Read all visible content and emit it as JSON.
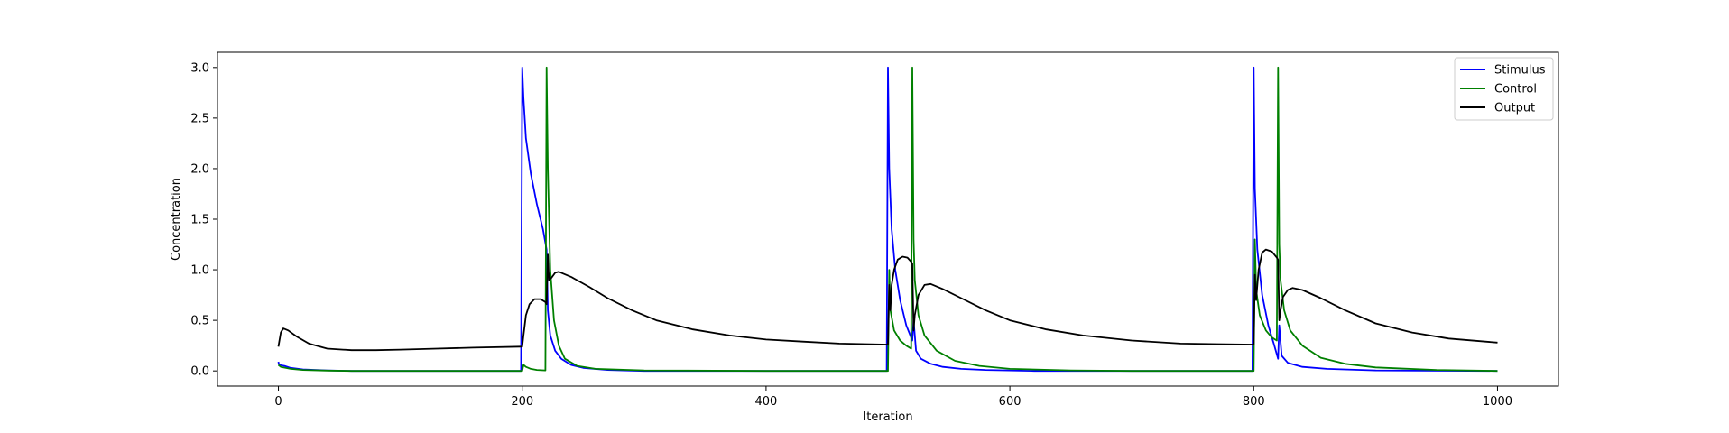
{
  "chart_data": {
    "type": "line",
    "xlabel": "Iteration",
    "ylabel": "Concentration",
    "xlim": [
      -50,
      1050
    ],
    "ylim": [
      -0.15,
      3.15
    ],
    "x_ticks": [
      0,
      200,
      400,
      600,
      800,
      1000
    ],
    "y_ticks": [
      0.0,
      0.5,
      1.0,
      1.5,
      2.0,
      2.5,
      3.0
    ],
    "x_tick_labels": [
      "0",
      "200",
      "400",
      "600",
      "800",
      "1000"
    ],
    "y_tick_labels": [
      "0.0",
      "0.5",
      "1.0",
      "1.5",
      "2.0",
      "2.5",
      "3.0"
    ],
    "grid": false,
    "legend_position": "top-right",
    "series": [
      {
        "name": "Stimulus",
        "color": "#0000ff",
        "points": [
          [
            0,
            0.09
          ],
          [
            0.5,
            0.06
          ],
          [
            5,
            0.05
          ],
          [
            10,
            0.03
          ],
          [
            20,
            0.015
          ],
          [
            40,
            0.005
          ],
          [
            60,
            0.0
          ],
          [
            199,
            0.0
          ],
          [
            200,
            3.0
          ],
          [
            201,
            2.7
          ],
          [
            203,
            2.3
          ],
          [
            207,
            1.95
          ],
          [
            212,
            1.65
          ],
          [
            217,
            1.4
          ],
          [
            220,
            1.2
          ],
          [
            221,
            0.6
          ],
          [
            223,
            0.35
          ],
          [
            227,
            0.2
          ],
          [
            232,
            0.12
          ],
          [
            240,
            0.06
          ],
          [
            250,
            0.03
          ],
          [
            270,
            0.01
          ],
          [
            300,
            0.0
          ],
          [
            499,
            0.0
          ],
          [
            500,
            3.0
          ],
          [
            501,
            2.0
          ],
          [
            503,
            1.4
          ],
          [
            506,
            1.0
          ],
          [
            510,
            0.7
          ],
          [
            515,
            0.45
          ],
          [
            520,
            0.3
          ],
          [
            521,
            0.5
          ],
          [
            523,
            0.2
          ],
          [
            527,
            0.12
          ],
          [
            535,
            0.07
          ],
          [
            545,
            0.04
          ],
          [
            560,
            0.02
          ],
          [
            580,
            0.01
          ],
          [
            620,
            0.0
          ],
          [
            799,
            0.0
          ],
          [
            800,
            3.0
          ],
          [
            801,
            1.8
          ],
          [
            803,
            1.2
          ],
          [
            807,
            0.75
          ],
          [
            812,
            0.45
          ],
          [
            817,
            0.25
          ],
          [
            820,
            0.12
          ],
          [
            821,
            0.45
          ],
          [
            823,
            0.15
          ],
          [
            828,
            0.08
          ],
          [
            840,
            0.04
          ],
          [
            860,
            0.02
          ],
          [
            900,
            0.005
          ],
          [
            1000,
            0.0
          ]
        ]
      },
      {
        "name": "Control",
        "color": "#008000",
        "points": [
          [
            0,
            0.06
          ],
          [
            2,
            0.04
          ],
          [
            10,
            0.02
          ],
          [
            20,
            0.01
          ],
          [
            40,
            0.003
          ],
          [
            60,
            0.0
          ],
          [
            200,
            0.0
          ],
          [
            201,
            0.06
          ],
          [
            203,
            0.04
          ],
          [
            207,
            0.02
          ],
          [
            212,
            0.01
          ],
          [
            219,
            0.005
          ],
          [
            220,
            3.0
          ],
          [
            221,
            2.0
          ],
          [
            223,
            1.0
          ],
          [
            226,
            0.5
          ],
          [
            230,
            0.25
          ],
          [
            235,
            0.12
          ],
          [
            245,
            0.05
          ],
          [
            260,
            0.02
          ],
          [
            300,
            0.005
          ],
          [
            400,
            0.0
          ],
          [
            500,
            0.0
          ],
          [
            501,
            1.0
          ],
          [
            502,
            0.6
          ],
          [
            505,
            0.4
          ],
          [
            510,
            0.3
          ],
          [
            515,
            0.25
          ],
          [
            519,
            0.22
          ],
          [
            520,
            3.0
          ],
          [
            521,
            1.3
          ],
          [
            522,
            0.9
          ],
          [
            525,
            0.55
          ],
          [
            530,
            0.35
          ],
          [
            540,
            0.2
          ],
          [
            555,
            0.1
          ],
          [
            575,
            0.05
          ],
          [
            600,
            0.02
          ],
          [
            650,
            0.005
          ],
          [
            700,
            0.0
          ],
          [
            800,
            0.0
          ],
          [
            801,
            1.3
          ],
          [
            802,
            0.8
          ],
          [
            805,
            0.55
          ],
          [
            810,
            0.4
          ],
          [
            815,
            0.33
          ],
          [
            819,
            0.3
          ],
          [
            820,
            3.0
          ],
          [
            821,
            1.25
          ],
          [
            822,
            0.9
          ],
          [
            825,
            0.6
          ],
          [
            830,
            0.4
          ],
          [
            840,
            0.25
          ],
          [
            855,
            0.13
          ],
          [
            875,
            0.07
          ],
          [
            900,
            0.035
          ],
          [
            950,
            0.01
          ],
          [
            1000,
            0.0
          ]
        ]
      },
      {
        "name": "Output",
        "color": "#000000",
        "points": [
          [
            0,
            0.24
          ],
          [
            2,
            0.38
          ],
          [
            4,
            0.42
          ],
          [
            8,
            0.4
          ],
          [
            15,
            0.34
          ],
          [
            25,
            0.27
          ],
          [
            40,
            0.22
          ],
          [
            60,
            0.205
          ],
          [
            80,
            0.205
          ],
          [
            100,
            0.21
          ],
          [
            130,
            0.22
          ],
          [
            160,
            0.23
          ],
          [
            199,
            0.24
          ],
          [
            200,
            0.24
          ],
          [
            201,
            0.35
          ],
          [
            203,
            0.55
          ],
          [
            206,
            0.66
          ],
          [
            210,
            0.71
          ],
          [
            215,
            0.71
          ],
          [
            219,
            0.68
          ],
          [
            220,
            0.66
          ],
          [
            221,
            1.15
          ],
          [
            222,
            0.9
          ],
          [
            224,
            0.92
          ],
          [
            227,
            0.97
          ],
          [
            230,
            0.98
          ],
          [
            240,
            0.93
          ],
          [
            255,
            0.83
          ],
          [
            270,
            0.72
          ],
          [
            290,
            0.6
          ],
          [
            310,
            0.5
          ],
          [
            340,
            0.41
          ],
          [
            370,
            0.35
          ],
          [
            400,
            0.31
          ],
          [
            430,
            0.29
          ],
          [
            460,
            0.27
          ],
          [
            499,
            0.26
          ],
          [
            500,
            0.26
          ],
          [
            501,
            0.85
          ],
          [
            502,
            0.6
          ],
          [
            503,
            0.85
          ],
          [
            505,
            1.0
          ],
          [
            508,
            1.1
          ],
          [
            512,
            1.13
          ],
          [
            516,
            1.12
          ],
          [
            519,
            1.08
          ],
          [
            520,
            1.06
          ],
          [
            521,
            0.4
          ],
          [
            522,
            0.55
          ],
          [
            525,
            0.75
          ],
          [
            530,
            0.85
          ],
          [
            535,
            0.86
          ],
          [
            545,
            0.81
          ],
          [
            560,
            0.72
          ],
          [
            580,
            0.6
          ],
          [
            600,
            0.5
          ],
          [
            630,
            0.41
          ],
          [
            660,
            0.35
          ],
          [
            700,
            0.3
          ],
          [
            740,
            0.27
          ],
          [
            770,
            0.265
          ],
          [
            799,
            0.26
          ],
          [
            800,
            0.26
          ],
          [
            801,
            0.95
          ],
          [
            802,
            0.7
          ],
          [
            804,
            1.0
          ],
          [
            807,
            1.17
          ],
          [
            810,
            1.2
          ],
          [
            815,
            1.18
          ],
          [
            819,
            1.12
          ],
          [
            820,
            1.1
          ],
          [
            821,
            0.5
          ],
          [
            822,
            0.6
          ],
          [
            824,
            0.73
          ],
          [
            828,
            0.8
          ],
          [
            832,
            0.82
          ],
          [
            840,
            0.8
          ],
          [
            855,
            0.72
          ],
          [
            875,
            0.6
          ],
          [
            900,
            0.47
          ],
          [
            930,
            0.38
          ],
          [
            960,
            0.32
          ],
          [
            1000,
            0.28
          ]
        ]
      }
    ]
  }
}
